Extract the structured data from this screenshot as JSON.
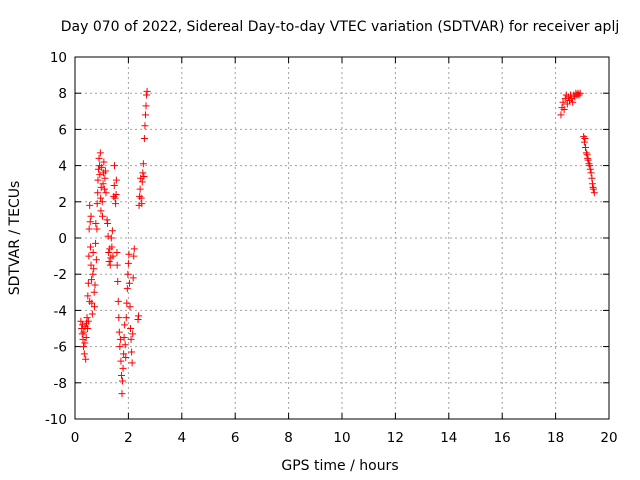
{
  "chart_data": {
    "type": "scatter",
    "title": "Day 070 of 2022, Sidereal Day-to-day VTEC variation (SDTVAR) for receiver aplj",
    "xlabel": "GPS time / hours",
    "ylabel": "SDTVAR / TECUs",
    "xlim": [
      0,
      20
    ],
    "ylim": [
      -10,
      10
    ],
    "xticks": [
      0,
      2,
      4,
      6,
      8,
      10,
      12,
      14,
      16,
      18,
      20
    ],
    "yticks": [
      -10,
      -8,
      -6,
      -4,
      -2,
      0,
      2,
      4,
      6,
      8,
      10
    ],
    "grid": true,
    "marker": "+",
    "series": [
      {
        "name": "SDTVAR",
        "color": "#ff0000",
        "points": [
          [
            0.22,
            -4.6
          ],
          [
            0.25,
            -5.0
          ],
          [
            0.27,
            -5.3
          ],
          [
            0.28,
            -4.8
          ],
          [
            0.3,
            -5.6
          ],
          [
            0.32,
            -6.0
          ],
          [
            0.33,
            -5.2
          ],
          [
            0.35,
            -6.4
          ],
          [
            0.37,
            -5.8
          ],
          [
            0.38,
            -4.9
          ],
          [
            0.4,
            -6.7
          ],
          [
            0.42,
            -5.5
          ],
          [
            0.43,
            -4.7
          ],
          [
            0.45,
            -4.4
          ],
          [
            0.47,
            -5.0
          ],
          [
            0.48,
            -3.2
          ],
          [
            0.5,
            -2.5
          ],
          [
            0.5,
            -4.6
          ],
          [
            0.52,
            -1.0
          ],
          [
            0.53,
            0.5
          ],
          [
            0.55,
            1.8
          ],
          [
            0.55,
            -3.5
          ],
          [
            0.57,
            0.9
          ],
          [
            0.58,
            -0.5
          ],
          [
            0.6,
            -1.5
          ],
          [
            0.6,
            1.2
          ],
          [
            0.62,
            -2.3
          ],
          [
            0.63,
            -3.6
          ],
          [
            0.65,
            -4.2
          ],
          [
            0.67,
            -2.0
          ],
          [
            0.68,
            -0.8
          ],
          [
            0.7,
            -1.7
          ],
          [
            0.72,
            -3.0
          ],
          [
            0.73,
            -3.8
          ],
          [
            0.75,
            -2.6
          ],
          [
            0.77,
            -0.3
          ],
          [
            0.78,
            0.8
          ],
          [
            0.8,
            -1.2
          ],
          [
            0.82,
            0.5
          ],
          [
            0.83,
            1.9
          ],
          [
            0.85,
            2.5
          ],
          [
            0.86,
            3.2
          ],
          [
            0.88,
            3.8
          ],
          [
            0.9,
            4.4
          ],
          [
            0.92,
            4.0
          ],
          [
            0.93,
            3.5
          ],
          [
            0.95,
            4.7
          ],
          [
            0.96,
            2.2
          ],
          [
            0.97,
            1.5
          ],
          [
            0.98,
            2.8
          ],
          [
            1.0,
            3.9
          ],
          [
            1.02,
            2.0
          ],
          [
            1.03,
            1.2
          ],
          [
            1.05,
            3.0
          ],
          [
            1.07,
            3.6
          ],
          [
            1.08,
            4.2
          ],
          [
            1.1,
            2.7
          ],
          [
            1.12,
            3.3
          ],
          [
            1.14,
            3.7
          ],
          [
            1.16,
            2.5
          ],
          [
            1.2,
            1.0
          ],
          [
            1.22,
            0.8
          ],
          [
            1.24,
            0.1
          ],
          [
            1.26,
            -0.8
          ],
          [
            1.28,
            -1.3
          ],
          [
            1.3,
            -0.6
          ],
          [
            1.32,
            -1.5
          ],
          [
            1.34,
            -1.1
          ],
          [
            1.36,
            0.0
          ],
          [
            1.38,
            -0.5
          ],
          [
            1.4,
            0.4
          ],
          [
            1.42,
            -1.0
          ],
          [
            1.45,
            2.3
          ],
          [
            1.47,
            2.9
          ],
          [
            1.48,
            4.0
          ],
          [
            1.5,
            2.2
          ],
          [
            1.52,
            1.9
          ],
          [
            1.54,
            2.4
          ],
          [
            1.55,
            3.2
          ],
          [
            1.57,
            -0.8
          ],
          [
            1.58,
            -1.5
          ],
          [
            1.6,
            -2.4
          ],
          [
            1.62,
            -3.5
          ],
          [
            1.64,
            -4.4
          ],
          [
            1.66,
            -5.2
          ],
          [
            1.68,
            -6.0
          ],
          [
            1.7,
            -5.6
          ],
          [
            1.72,
            -6.8
          ],
          [
            1.74,
            -7.6
          ],
          [
            1.76,
            -8.6
          ],
          [
            1.78,
            -7.9
          ],
          [
            1.8,
            -7.2
          ],
          [
            1.82,
            -6.4
          ],
          [
            1.84,
            -5.5
          ],
          [
            1.86,
            -4.8
          ],
          [
            1.88,
            -5.9
          ],
          [
            1.9,
            -6.6
          ],
          [
            1.92,
            -4.4
          ],
          [
            1.94,
            -3.6
          ],
          [
            1.96,
            -2.8
          ],
          [
            1.98,
            -2.0
          ],
          [
            2.0,
            -1.4
          ],
          [
            2.02,
            -0.9
          ],
          [
            2.04,
            -2.5
          ],
          [
            2.06,
            -3.8
          ],
          [
            2.08,
            -5.0
          ],
          [
            2.1,
            -5.6
          ],
          [
            2.12,
            -6.3
          ],
          [
            2.14,
            -6.9
          ],
          [
            2.16,
            -5.3
          ],
          [
            2.18,
            -2.2
          ],
          [
            2.2,
            -1.0
          ],
          [
            2.22,
            -0.6
          ],
          [
            2.4,
            1.8
          ],
          [
            2.42,
            2.3
          ],
          [
            2.44,
            2.7
          ],
          [
            2.46,
            3.3
          ],
          [
            2.48,
            2.2
          ],
          [
            2.5,
            1.9
          ],
          [
            2.52,
            3.1
          ],
          [
            2.54,
            3.6
          ],
          [
            2.56,
            4.1
          ],
          [
            2.58,
            3.4
          ],
          [
            2.6,
            5.5
          ],
          [
            2.62,
            6.2
          ],
          [
            2.64,
            6.8
          ],
          [
            2.66,
            7.3
          ],
          [
            2.68,
            7.9
          ],
          [
            2.7,
            8.1
          ],
          [
            2.36,
            -4.5
          ],
          [
            2.38,
            -4.3
          ],
          [
            18.2,
            6.8
          ],
          [
            18.24,
            7.2
          ],
          [
            18.28,
            7.5
          ],
          [
            18.32,
            7.1
          ],
          [
            18.36,
            7.7
          ],
          [
            18.4,
            7.9
          ],
          [
            18.44,
            7.4
          ],
          [
            18.48,
            7.8
          ],
          [
            18.52,
            7.6
          ],
          [
            18.56,
            7.9
          ],
          [
            18.6,
            7.7
          ],
          [
            18.64,
            7.5
          ],
          [
            18.68,
            7.9
          ],
          [
            18.72,
            7.8
          ],
          [
            18.76,
            8.0
          ],
          [
            18.8,
            7.9
          ],
          [
            18.84,
            8.0
          ],
          [
            18.88,
            7.9
          ],
          [
            18.92,
            8.0
          ],
          [
            19.05,
            5.6
          ],
          [
            19.08,
            5.3
          ],
          [
            19.1,
            5.5
          ],
          [
            19.12,
            5.0
          ],
          [
            19.15,
            4.7
          ],
          [
            19.18,
            4.6
          ],
          [
            19.2,
            4.4
          ],
          [
            19.22,
            4.3
          ],
          [
            19.25,
            4.1
          ],
          [
            19.28,
            4.0
          ],
          [
            19.3,
            3.8
          ],
          [
            19.33,
            3.6
          ],
          [
            19.36,
            3.3
          ],
          [
            19.38,
            3.0
          ],
          [
            19.4,
            2.8
          ],
          [
            19.42,
            2.7
          ],
          [
            19.45,
            2.5
          ]
        ]
      }
    ]
  }
}
